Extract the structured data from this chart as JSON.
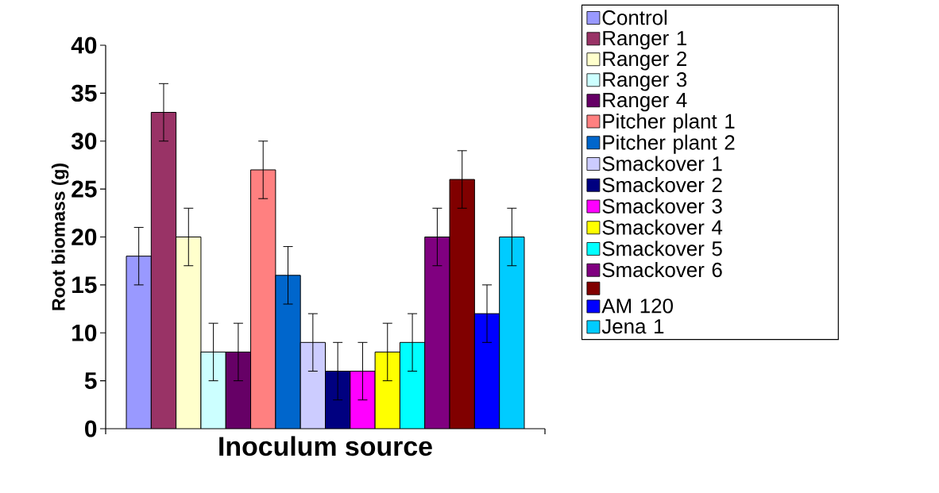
{
  "chart_data": {
    "type": "bar",
    "xlabel": "Inoculum source",
    "ylabel": "Root biomass (g)",
    "categories": [
      null
    ],
    "ylim": [
      0,
      40
    ],
    "yticks": [
      0,
      5,
      10,
      15,
      20,
      25,
      30,
      35,
      40
    ],
    "legend": "right",
    "series": [
      {
        "name": "Control",
        "color": "#9999ff",
        "values": [
          18
        ],
        "errors": [
          3
        ]
      },
      {
        "name": "Ranger 1",
        "color": "#993366",
        "values": [
          33
        ],
        "errors": [
          3
        ]
      },
      {
        "name": "Ranger 2",
        "color": "#ffffcc",
        "values": [
          20
        ],
        "errors": [
          3
        ]
      },
      {
        "name": "Ranger 3",
        "color": "#ccffff",
        "values": [
          8
        ],
        "errors": [
          3
        ]
      },
      {
        "name": "Ranger 4",
        "color": "#660066",
        "values": [
          8
        ],
        "errors": [
          3
        ]
      },
      {
        "name": "Pitcher plant 1",
        "color": "#ff8080",
        "values": [
          27
        ],
        "errors": [
          3
        ]
      },
      {
        "name": "Pitcher plant 2",
        "color": "#0066cc",
        "values": [
          16
        ],
        "errors": [
          3
        ]
      },
      {
        "name": "Smackover 1",
        "color": "#ccccff",
        "values": [
          9
        ],
        "errors": [
          3
        ]
      },
      {
        "name": "Smackover 2",
        "color": "#000080",
        "values": [
          6
        ],
        "errors": [
          3
        ]
      },
      {
        "name": "Smackover 3",
        "color": "#ff00ff",
        "values": [
          6
        ],
        "errors": [
          3
        ]
      },
      {
        "name": "Smackover 4",
        "color": "#ffff00",
        "values": [
          8
        ],
        "errors": [
          3
        ]
      },
      {
        "name": "Smackover 5",
        "color": "#00ffff",
        "values": [
          9
        ],
        "errors": [
          3
        ]
      },
      {
        "name": "Smackover 6",
        "color": "#800080",
        "values": [
          20
        ],
        "errors": [
          3
        ]
      },
      {
        "color": "#800000",
        "values": [
          26
        ],
        "errors": [
          3
        ]
      },
      {
        "name": "AM 120",
        "color": "#0000ff",
        "values": [
          12
        ],
        "errors": [
          3
        ]
      },
      {
        "name": "Jena 1",
        "color": "#00ccff",
        "values": [
          20
        ],
        "errors": [
          3
        ]
      }
    ]
  }
}
